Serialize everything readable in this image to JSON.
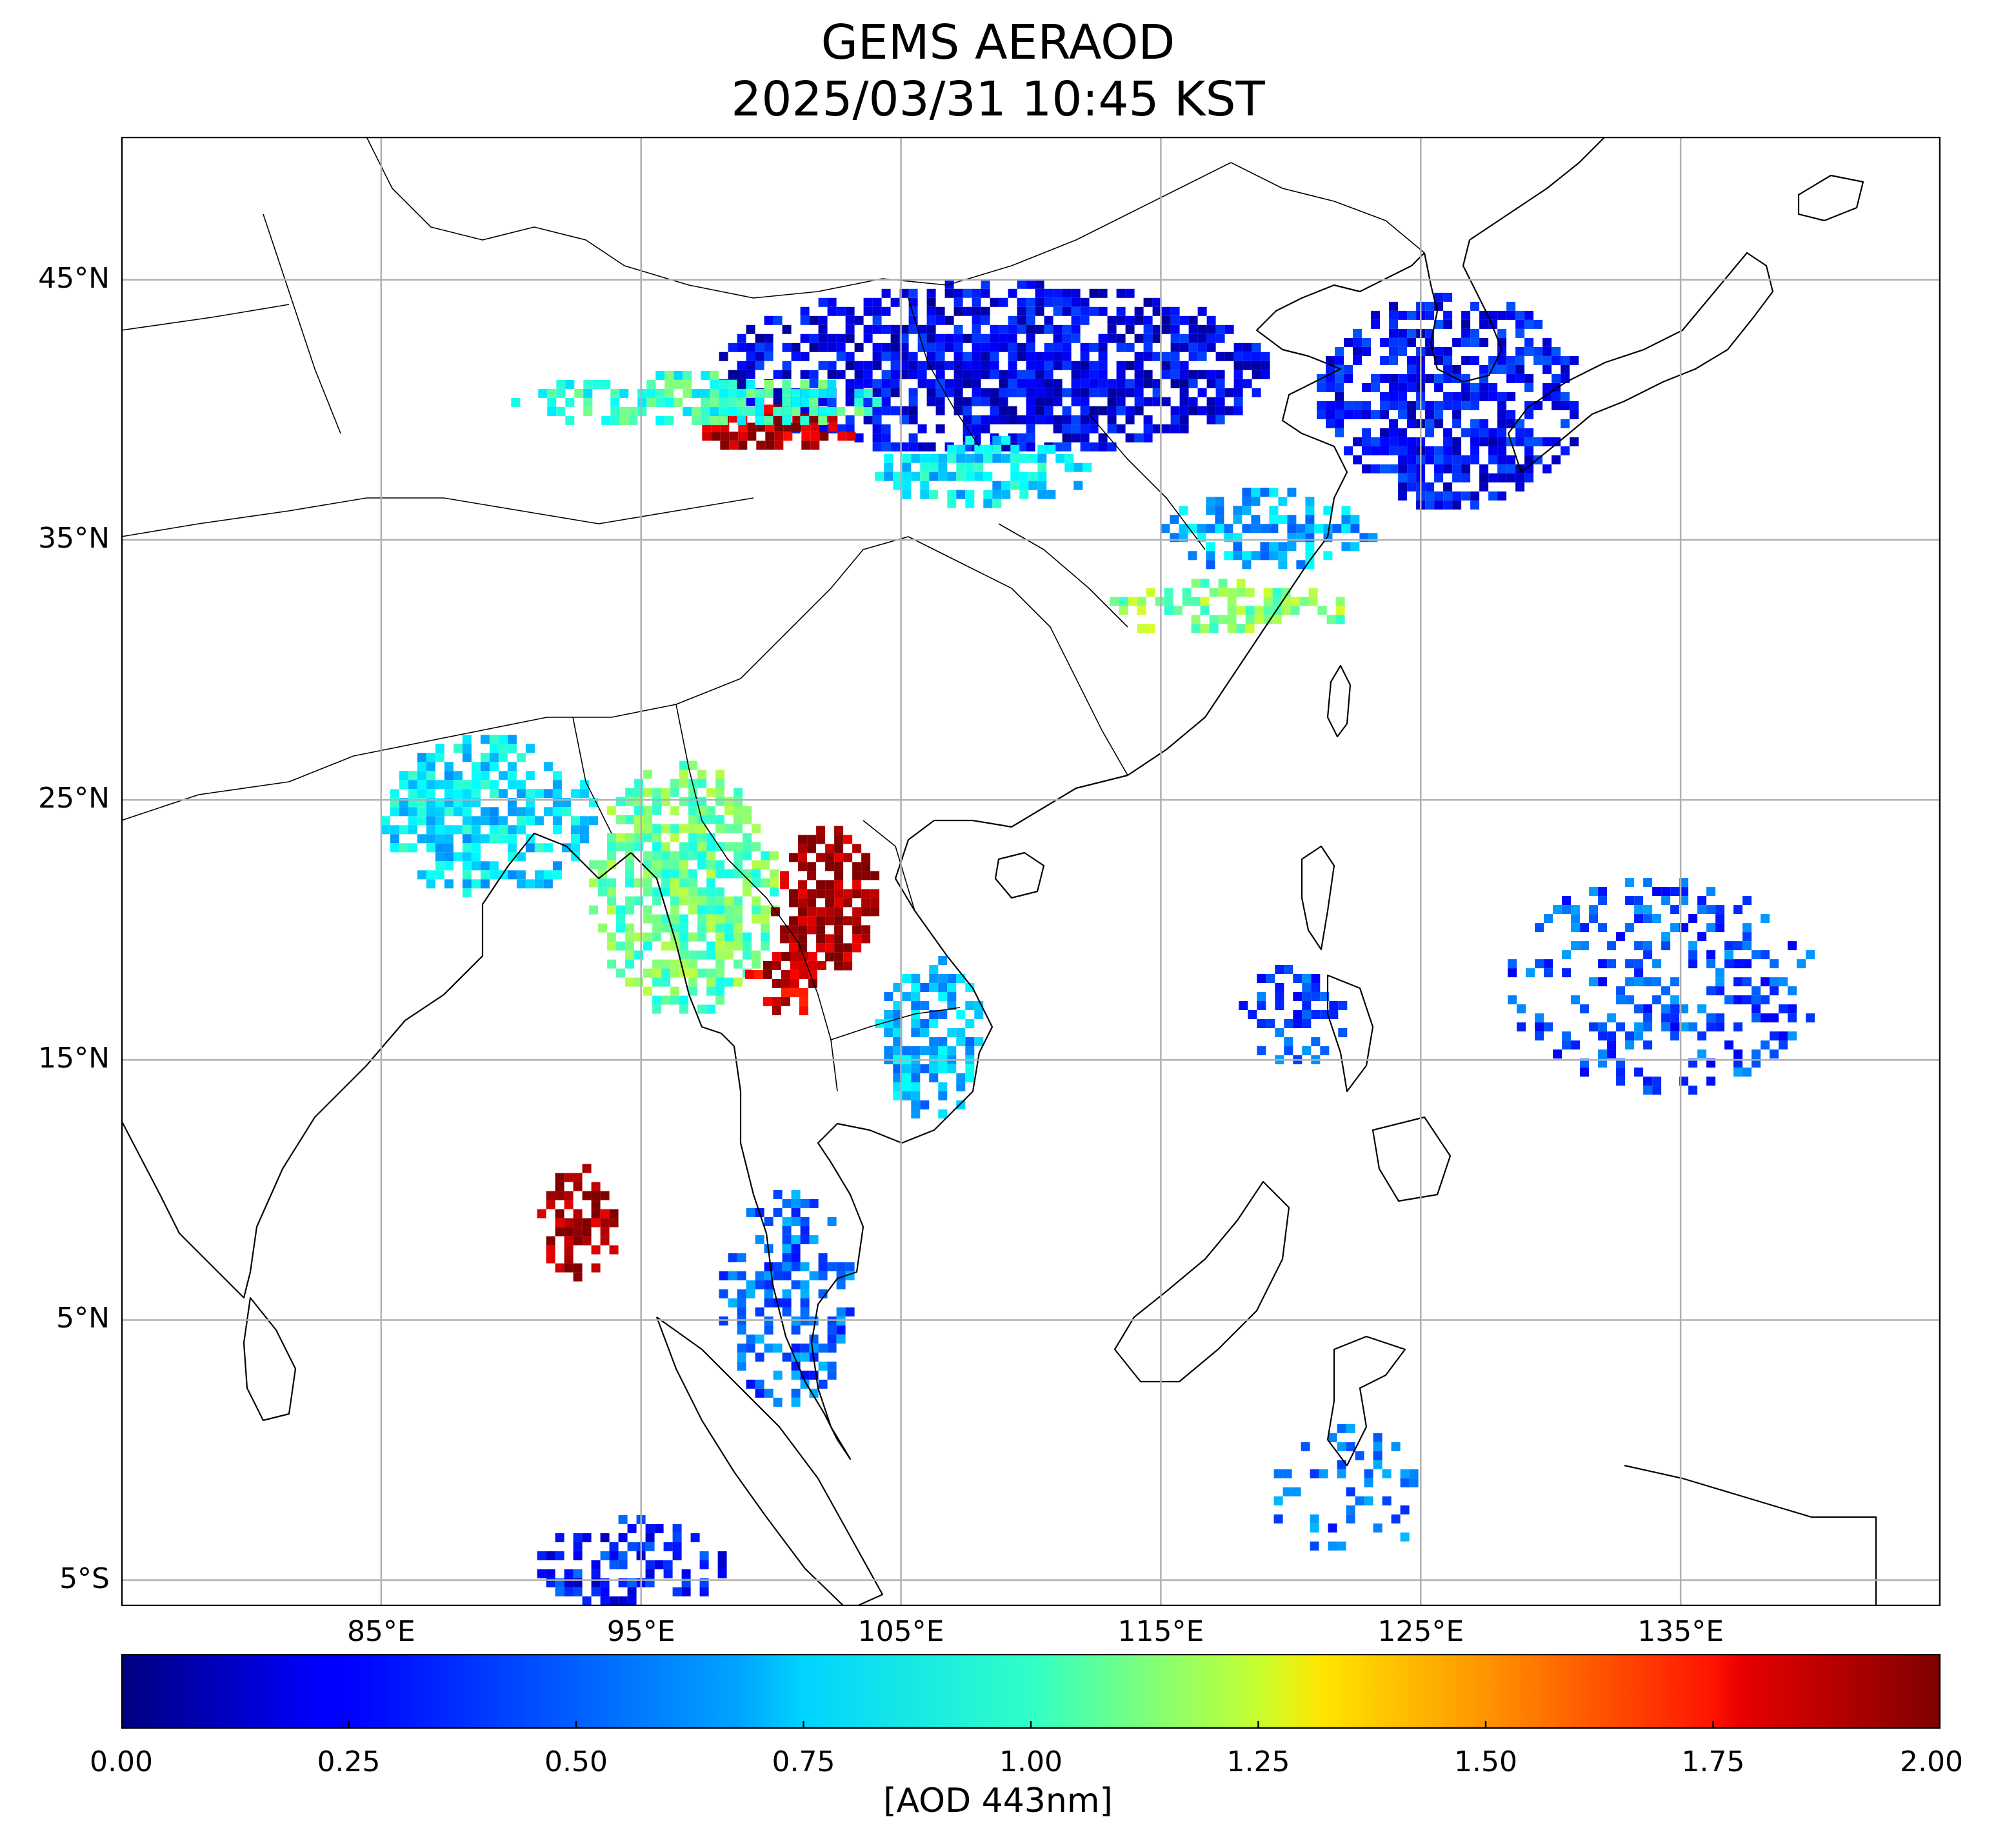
{
  "title": {
    "line1": "GEMS AERAOD",
    "line2": "2025/03/31 10:45 KST"
  },
  "map": {
    "extent": {
      "lon_min": 75,
      "lon_max": 145,
      "lat_min": -6,
      "lat_max": 50.5
    },
    "lat_ticks": [
      {
        "value": 45,
        "label": "45°N"
      },
      {
        "value": 35,
        "label": "35°N"
      },
      {
        "value": 25,
        "label": "25°N"
      },
      {
        "value": 15,
        "label": "15°N"
      },
      {
        "value": 5,
        "label": "5°N"
      },
      {
        "value": -5,
        "label": "5°S"
      }
    ],
    "lon_ticks": [
      {
        "value": 85,
        "label": "85°E"
      },
      {
        "value": 95,
        "label": "95°E"
      },
      {
        "value": 105,
        "label": "105°E"
      },
      {
        "value": 115,
        "label": "115°E"
      },
      {
        "value": 125,
        "label": "125°E"
      },
      {
        "value": 135,
        "label": "135°E"
      }
    ],
    "grid": true,
    "grid_color": "#b0b0b0",
    "aerosol_regions": [
      {
        "name": "mongolia-north-china",
        "aod": 0.22,
        "lon": [
          98,
          119
        ],
        "lat": [
          38.5,
          45
        ],
        "density": 0.75
      },
      {
        "name": "tarim-dust-plume",
        "aod": 1.9,
        "lon": [
          97,
          103
        ],
        "lat": [
          38.6,
          40.2
        ],
        "density": 0.85
      },
      {
        "name": "taklamakan-margin",
        "aod": 0.85,
        "lon": [
          90,
          104
        ],
        "lat": [
          39.5,
          41.5
        ],
        "density": 0.7
      },
      {
        "name": "hexi-corridor",
        "aod": 0.7,
        "lon": [
          104,
          112
        ],
        "lat": [
          36.5,
          39
        ],
        "density": 0.65
      },
      {
        "name": "northeast-china-korea",
        "aod": 0.25,
        "lon": [
          121,
          131
        ],
        "lat": [
          36.5,
          44.5
        ],
        "density": 0.7
      },
      {
        "name": "north-china-plain",
        "aod": 0.6,
        "lon": [
          115,
          123
        ],
        "lat": [
          34,
          37
        ],
        "density": 0.6
      },
      {
        "name": "yangtze",
        "aod": 1.0,
        "lon": [
          112,
          122
        ],
        "lat": [
          31.5,
          33.5
        ],
        "density": 0.55
      },
      {
        "name": "east-india-bangladesh",
        "aod": 0.7,
        "lon": [
          85,
          93
        ],
        "lat": [
          21.5,
          27.5
        ],
        "density": 0.7
      },
      {
        "name": "myanmar",
        "aod": 0.95,
        "lon": [
          93,
          100
        ],
        "lat": [
          17,
          26.5
        ],
        "density": 0.7
      },
      {
        "name": "yunnan-laos-fire",
        "aod": 1.95,
        "lon": [
          100,
          104
        ],
        "lat": [
          18.5,
          24
        ],
        "density": 0.8
      },
      {
        "name": "thailand-fire",
        "aod": 1.85,
        "lon": [
          99,
          102
        ],
        "lat": [
          17,
          19.5
        ],
        "density": 0.6
      },
      {
        "name": "laos-vietnam",
        "aod": 0.6,
        "lon": [
          104,
          108
        ],
        "lat": [
          13,
          19
        ],
        "density": 0.65
      },
      {
        "name": "andaman-fire",
        "aod": 1.95,
        "lon": [
          91,
          94
        ],
        "lat": [
          6.8,
          11
        ],
        "density": 0.55
      },
      {
        "name": "malay-peninsula",
        "aod": 0.45,
        "lon": [
          98,
          103
        ],
        "lat": [
          2,
          10
        ],
        "density": 0.55
      },
      {
        "name": "philippine-sea",
        "aod": 0.4,
        "lon": [
          128,
          140
        ],
        "lat": [
          14,
          22
        ],
        "density": 0.3
      },
      {
        "name": "luzon",
        "aod": 0.4,
        "lon": [
          118,
          122
        ],
        "lat": [
          15,
          19
        ],
        "density": 0.45
      },
      {
        "name": "sumatra-south",
        "aod": 0.3,
        "lon": [
          91,
          98
        ],
        "lat": [
          -6,
          -2.5
        ],
        "density": 0.45
      },
      {
        "name": "sulawesi",
        "aod": 0.45,
        "lon": [
          119,
          125
        ],
        "lat": [
          -4,
          1
        ],
        "density": 0.3
      }
    ]
  },
  "colorbar": {
    "colormap": "jet",
    "min": 0,
    "max": 2,
    "ticks": [
      "0.00",
      "0.25",
      "0.50",
      "0.75",
      "1.00",
      "1.25",
      "1.50",
      "1.75",
      "2.00"
    ],
    "label": "[AOD 443nm]"
  }
}
